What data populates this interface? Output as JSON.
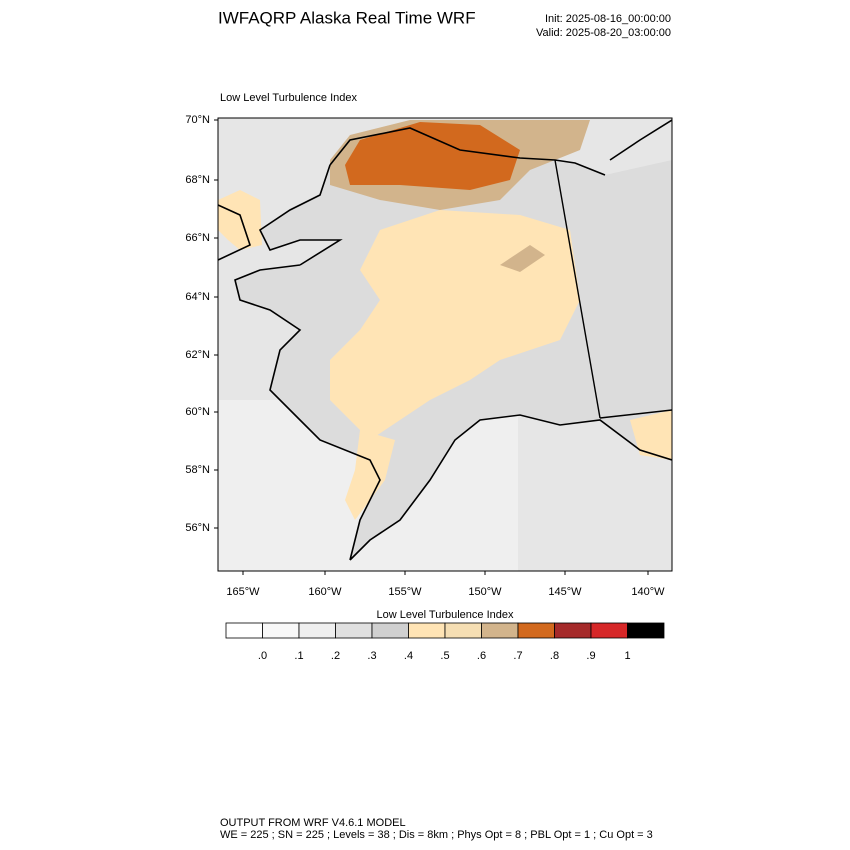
{
  "header": {
    "title": "IWFAQRP Alaska Real Time WRF",
    "init": "Init: 2025-08-16_00:00:00",
    "valid": "Valid: 2025-08-20_03:00:00"
  },
  "map": {
    "title": "Low Level Turbulence Index",
    "lat_labels": [
      "70°N",
      "68°N",
      "66°N",
      "64°N",
      "62°N",
      "60°N",
      "58°N",
      "56°N"
    ],
    "lon_labels": [
      "165°W",
      "160°W",
      "155°W",
      "150°W",
      "145°W",
      "140°W"
    ]
  },
  "colorbar": {
    "title": "Low Level Turbulence Index",
    "colors": [
      "#ffffff",
      "#f8f8f8",
      "#efefef",
      "#e0e0e0",
      "#d0d0d0",
      "#ffe4b5",
      "#f5deb3",
      "#d2b48c",
      "#d2691e",
      "#a52a2a",
      "#d62728",
      "#000000"
    ],
    "labels": [
      ".0",
      ".1",
      ".2",
      ".3",
      ".4",
      ".5",
      ".6",
      ".7",
      ".8",
      ".9",
      "1"
    ]
  },
  "footer": {
    "line1": "OUTPUT FROM WRF V4.6.1 MODEL",
    "line2": "WE = 225 ; SN = 225 ; Levels = 38 ; Dis = 8km ; Phys Opt = 8 ; PBL Opt = 1 ; Cu Opt = 3"
  }
}
